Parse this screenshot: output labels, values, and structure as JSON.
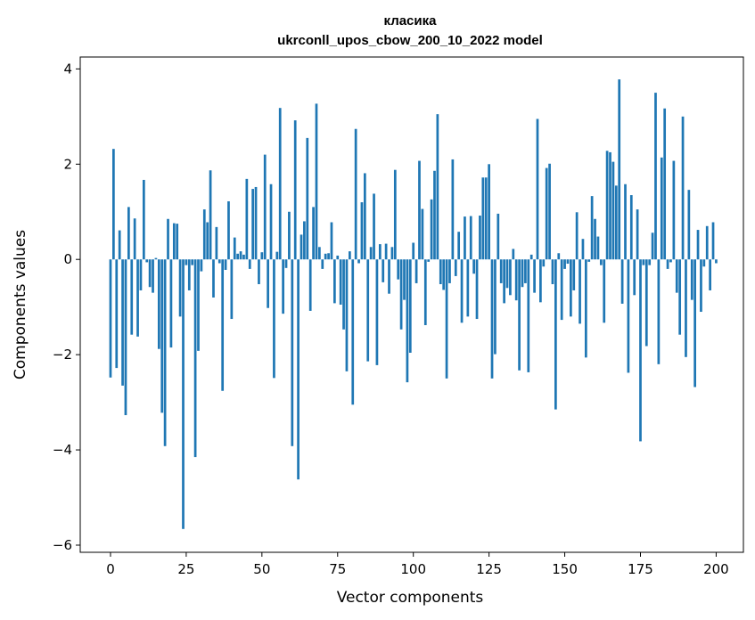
{
  "chart_data": {
    "type": "bar",
    "title": "класика",
    "subtitle": "ukrconll_upos_cbow_200_10_2022 model",
    "xlabel": "Vector components",
    "ylabel": "Components values",
    "xlim": [
      -10,
      209
    ],
    "ylim": [
      -6.15,
      4.25
    ],
    "xticks": [
      0,
      25,
      50,
      75,
      100,
      125,
      150,
      175,
      200
    ],
    "xtick_labels": [
      "0",
      "25",
      "50",
      "75",
      "100",
      "125",
      "150",
      "175",
      "200"
    ],
    "yticks": [
      -6,
      -4,
      -2,
      0,
      2,
      4
    ],
    "ytick_labels": [
      "−6",
      "−4",
      "−2",
      "0",
      "2",
      "4"
    ],
    "grid": false,
    "legend": "none",
    "bar_color": "#1f77b4",
    "values": [
      -2.48,
      2.32,
      -2.28,
      0.61,
      -2.65,
      -3.27,
      1.1,
      -1.58,
      0.86,
      -1.62,
      -0.65,
      1.67,
      -0.06,
      -0.58,
      -0.7,
      0.03,
      -1.88,
      -3.22,
      -3.92,
      0.85,
      -1.85,
      0.76,
      0.75,
      -1.2,
      -5.66,
      -0.12,
      -0.65,
      -0.12,
      -4.15,
      -1.92,
      -0.25,
      1.05,
      0.78,
      1.87,
      -0.8,
      0.68,
      -0.08,
      -2.76,
      -0.22,
      1.22,
      -1.25,
      0.46,
      0.12,
      0.17,
      0.1,
      1.69,
      -0.2,
      1.48,
      1.52,
      -0.52,
      0.15,
      2.2,
      -1.02,
      1.58,
      -2.49,
      0.16,
      3.18,
      -1.14,
      -0.18,
      1.0,
      -3.92,
      2.92,
      -4.62,
      0.52,
      0.8,
      2.55,
      -1.08,
      1.1,
      3.27,
      0.26,
      -0.2,
      0.12,
      0.13,
      0.78,
      -0.92,
      0.08,
      -0.95,
      -1.47,
      -2.35,
      0.17,
      -3.05,
      2.74,
      -0.08,
      1.2,
      1.81,
      -2.14,
      0.26,
      1.38,
      -2.22,
      0.32,
      -0.48,
      0.33,
      -0.72,
      0.26,
      1.88,
      -0.42,
      -1.47,
      -0.85,
      -2.58,
      -1.96,
      0.35,
      -0.5,
      2.07,
      1.06,
      -1.38,
      -0.05,
      1.26,
      1.86,
      3.05,
      -0.52,
      -0.64,
      -2.5,
      -0.5,
      2.1,
      -0.35,
      0.58,
      -1.33,
      0.9,
      -1.2,
      0.91,
      -0.3,
      -1.25,
      0.92,
      1.72,
      1.72,
      2.0,
      -2.5,
      -1.99,
      0.96,
      -0.5,
      -0.92,
      -0.6,
      -0.75,
      0.22,
      -0.86,
      -2.33,
      -0.58,
      -0.5,
      -2.37,
      0.1,
      -0.7,
      2.95,
      -0.9,
      -0.15,
      1.92,
      2.01,
      -0.52,
      -3.15,
      0.13,
      -1.27,
      -0.2,
      -0.09,
      -1.2,
      -0.65,
      0.99,
      -1.35,
      0.43,
      -2.06,
      -0.05,
      1.33,
      0.85,
      0.48,
      -0.12,
      -1.33,
      2.28,
      2.25,
      2.05,
      1.55,
      3.78,
      -0.93,
      1.58,
      -2.38,
      1.35,
      -0.75,
      1.05,
      -3.82,
      -0.12,
      -1.82,
      -0.12,
      0.56,
      3.5,
      -2.2,
      2.14,
      3.17,
      -0.2,
      -0.06,
      2.07,
      -0.7,
      -1.58,
      3.0,
      -2.05,
      1.46,
      -0.85,
      -2.68,
      0.62,
      -1.1,
      -0.15,
      0.7,
      -0.65,
      0.78,
      -0.08
    ]
  }
}
